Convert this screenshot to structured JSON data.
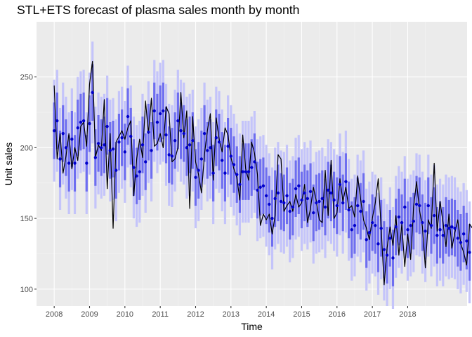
{
  "chart_data": {
    "type": "line",
    "title": "STL+ETS forecast of plasma sales month by month",
    "xlabel": "Time",
    "ylabel": "Unit sales",
    "xlim": [
      2007.5,
      2019.68
    ],
    "ylim": [
      88,
      289
    ],
    "x_ticks": [
      2008,
      2009,
      2010,
      2011,
      2012,
      2013,
      2014,
      2015,
      2016,
      2017,
      2018
    ],
    "x_tick_labels": [
      "2008",
      "2009",
      "2010",
      "2011",
      "2012",
      "2013",
      "2014",
      "2015",
      "2016",
      "2017",
      "2018"
    ],
    "y_ticks": [
      100,
      150,
      200,
      250
    ],
    "y_tick_labels": [
      "100",
      "150",
      "200",
      "250"
    ],
    "grid": true,
    "colors": {
      "panel": "#ebebeb",
      "grid_major": "#ffffff",
      "grid_minor": "#f5f5f5",
      "actual": "#000000",
      "forecast": "#0000cc",
      "pi80": "#6e6ef0",
      "pi95": "#c4c4fa"
    },
    "actual": {
      "x_start": 2008.0,
      "step": 0.0833333,
      "values": [
        244,
        192,
        210,
        182,
        194,
        210,
        185,
        200,
        191,
        215,
        218,
        201,
        245,
        261,
        193,
        202,
        198,
        234,
        171,
        210,
        143,
        204,
        208,
        212,
        206,
        214,
        219,
        166,
        192,
        206,
        193,
        233,
        210,
        235,
        201,
        203,
        210,
        200,
        229,
        224,
        190,
        192,
        200,
        239,
        207,
        226,
        157,
        222,
        190,
        181,
        168,
        195,
        212,
        224,
        177,
        221,
        206,
        197,
        214,
        209,
        193,
        185,
        179,
        163,
        209,
        185,
        177,
        204,
        196,
        181,
        145,
        153,
        149,
        153,
        139,
        152,
        195,
        192,
        155,
        159,
        162,
        155,
        167,
        158,
        161,
        174,
        147,
        157,
        172,
        162,
        149,
        147,
        184,
        152,
        191,
        150,
        154,
        178,
        162,
        172,
        157,
        159,
        151,
        180,
        164,
        149,
        143,
        135,
        150,
        161,
        178,
        143,
        103,
        129,
        144,
        131,
        152,
        124,
        146,
        116,
        139,
        121,
        158,
        176,
        156,
        144,
        115,
        149,
        143,
        189,
        141,
        162,
        147,
        130,
        153,
        129,
        140,
        149,
        132,
        126,
        117,
        146,
        143,
        126,
        131,
        127
      ]
    },
    "forecast": {
      "x_start": 2008.0,
      "step": 0.0833333,
      "point": [
        212,
        219,
        192,
        210,
        200,
        189,
        206,
        189,
        214,
        218,
        219,
        189,
        217,
        239,
        193,
        203,
        200,
        202,
        215,
        198,
        199,
        184,
        204,
        207,
        197,
        222,
        208,
        186,
        180,
        183,
        202,
        190,
        211,
        198,
        226,
        218,
        224,
        226,
        209,
        195,
        194,
        205,
        219,
        212,
        210,
        200,
        202,
        205,
        179,
        184,
        192,
        210,
        198,
        200,
        182,
        207,
        204,
        191,
        182,
        201,
        194,
        188,
        181,
        174,
        183,
        183,
        183,
        186,
        190,
        170,
        172,
        173,
        166,
        160,
        150,
        164,
        168,
        162,
        161,
        166,
        155,
        158,
        171,
        173,
        163,
        168,
        164,
        169,
        154,
        161,
        162,
        164,
        158,
        170,
        168,
        163,
        159,
        174,
        161,
        176,
        156,
        142,
        145,
        159,
        155,
        162,
        135,
        140,
        147,
        145,
        132,
        143,
        128,
        124,
        136,
        122,
        144,
        151,
        147,
        158,
        142,
        145,
        148,
        160,
        159,
        147,
        141,
        159,
        145,
        152,
        138,
        142,
        138,
        145,
        143,
        144,
        143,
        136,
        133,
        139,
        134,
        126
      ],
      "lo80_offset": 20,
      "hi80_offset": 20,
      "lo95_offset": 36,
      "hi95_offset": 36
    }
  }
}
